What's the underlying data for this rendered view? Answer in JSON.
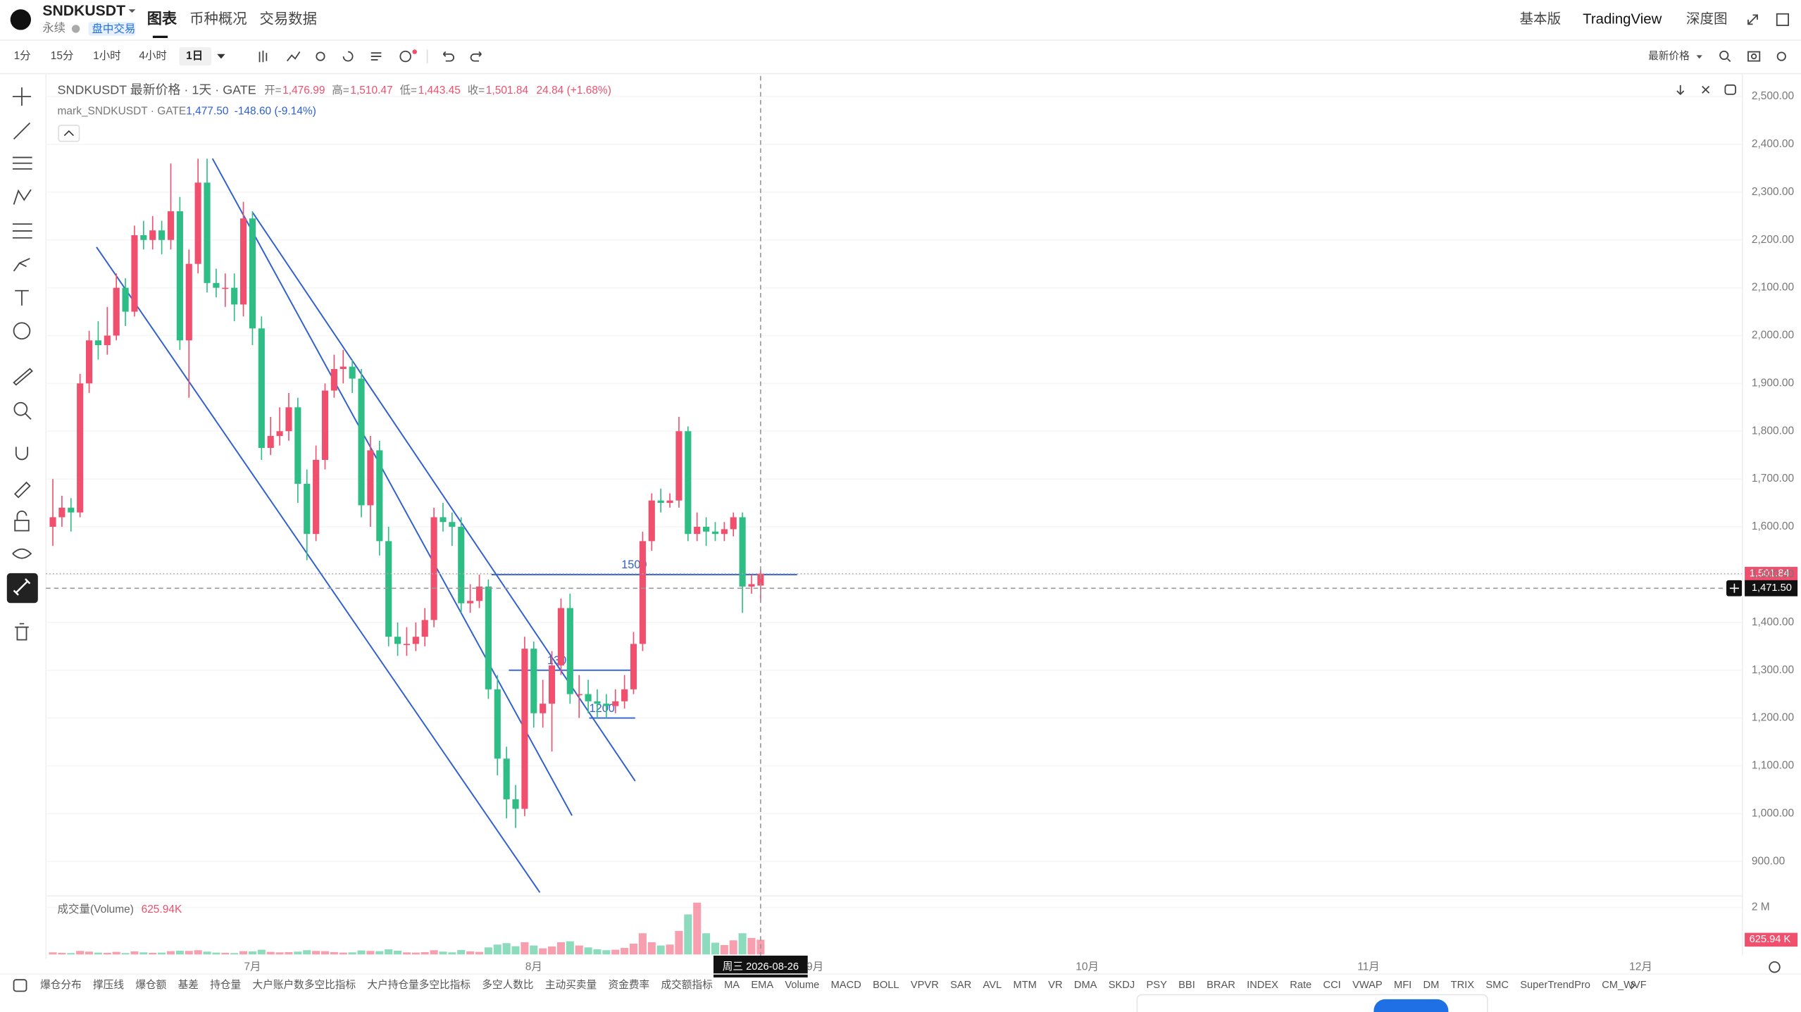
{
  "header": {
    "symbol": "SNDKUSDT",
    "contract": "永续",
    "badge": "盘中交易",
    "tabs": [
      "图表",
      "币种概况",
      "交易数据"
    ],
    "right_links": [
      "基本版",
      "TradingView",
      "深度图"
    ]
  },
  "toolbar": {
    "intervals": [
      "1分",
      "15分",
      "1小时",
      "4小时",
      "1日"
    ],
    "price_source": "最新价格"
  },
  "chart_data": [
    {
      "type": "candlestick",
      "legend": {
        "title": "SNDKUSDT 最新价格 · 1天 · GATE",
        "ohlc": [
          {
            "label": "开=",
            "value": "1,476.99"
          },
          {
            "label": "高=",
            "value": "1,510.47"
          },
          {
            "label": "低=",
            "value": "1,443.45"
          },
          {
            "label": "收=",
            "value": "1,501.84"
          }
        ],
        "change": "24.84 (+1.68%)",
        "mark_title": "mark_SNDKUSDT · GATE",
        "mark_price": "1,477.50",
        "mark_change": "-148.60 (-9.14%)"
      },
      "categories": [
        null,
        null,
        null,
        null,
        null,
        null,
        null,
        null,
        null,
        null,
        null,
        null,
        null,
        null,
        null,
        null,
        null,
        null,
        null,
        null,
        null,
        null,
        "7月",
        null,
        null,
        null,
        null,
        null,
        null,
        null,
        null,
        null,
        null,
        null,
        null,
        null,
        null,
        null,
        null,
        null,
        null,
        null,
        null,
        null,
        null,
        null,
        null,
        null,
        null,
        null,
        null,
        null,
        null,
        "8月",
        null,
        null,
        null,
        null,
        null,
        null,
        null,
        null,
        null,
        null,
        null,
        null,
        null,
        null,
        null,
        null,
        null,
        null,
        null,
        null,
        null,
        null,
        null,
        null,
        null
      ],
      "future_x_labels": [
        "9月",
        "10月",
        "11月",
        "12月"
      ],
      "candles": [
        [
          1600,
          1700,
          1560,
          1620
        ],
        [
          1620,
          1665,
          1600,
          1640
        ],
        [
          1640,
          1660,
          1590,
          1630
        ],
        [
          1630,
          1920,
          1620,
          1900
        ],
        [
          1900,
          2010,
          1880,
          1990
        ],
        [
          1990,
          2030,
          1950,
          1980
        ],
        [
          1980,
          2060,
          1960,
          2000
        ],
        [
          2000,
          2130,
          1990,
          2100
        ],
        [
          2100,
          2120,
          2020,
          2050
        ],
        [
          2050,
          2230,
          2040,
          2210
        ],
        [
          2210,
          2240,
          2180,
          2200
        ],
        [
          2200,
          2250,
          2180,
          2220
        ],
        [
          2220,
          2240,
          2170,
          2200
        ],
        [
          2200,
          2360,
          2180,
          2260
        ],
        [
          2260,
          2290,
          1970,
          1990
        ],
        [
          1990,
          2180,
          1870,
          2150
        ],
        [
          2150,
          2370,
          2130,
          2320
        ],
        [
          2320,
          2370,
          2090,
          2110
        ],
        [
          2110,
          2140,
          2080,
          2100
        ],
        [
          2100,
          2130,
          2060,
          2100
        ],
        [
          2100,
          2130,
          2030,
          2065
        ],
        [
          2065,
          2280,
          2040,
          2245
        ],
        [
          2245,
          2260,
          1980,
          2015
        ],
        [
          2015,
          2040,
          1740,
          1765
        ],
        [
          1765,
          1830,
          1750,
          1790
        ],
        [
          1790,
          1850,
          1770,
          1800
        ],
        [
          1800,
          1880,
          1780,
          1850
        ],
        [
          1850,
          1870,
          1650,
          1690
        ],
        [
          1690,
          1720,
          1530,
          1585
        ],
        [
          1585,
          1770,
          1570,
          1740
        ],
        [
          1740,
          1900,
          1720,
          1885
        ],
        [
          1885,
          1960,
          1870,
          1930
        ],
        [
          1930,
          1970,
          1900,
          1935
        ],
        [
          1935,
          1950,
          1880,
          1910
        ],
        [
          1910,
          1930,
          1620,
          1645
        ],
        [
          1645,
          1790,
          1600,
          1760
        ],
        [
          1760,
          1780,
          1540,
          1570
        ],
        [
          1570,
          1600,
          1350,
          1370
        ],
        [
          1370,
          1400,
          1330,
          1355
        ],
        [
          1355,
          1390,
          1330,
          1355
        ],
        [
          1355,
          1400,
          1340,
          1370
        ],
        [
          1370,
          1430,
          1350,
          1405
        ],
        [
          1405,
          1640,
          1390,
          1620
        ],
        [
          1620,
          1650,
          1590,
          1610
        ],
        [
          1610,
          1630,
          1560,
          1600
        ],
        [
          1600,
          1620,
          1420,
          1440
        ],
        [
          1440,
          1480,
          1420,
          1445
        ],
        [
          1445,
          1500,
          1430,
          1475
        ],
        [
          1475,
          1490,
          1240,
          1260
        ],
        [
          1260,
          1290,
          1080,
          1115
        ],
        [
          1115,
          1140,
          990,
          1030
        ],
        [
          1030,
          1060,
          970,
          1010
        ],
        [
          1010,
          1370,
          995,
          1345
        ],
        [
          1345,
          1360,
          1180,
          1210
        ],
        [
          1210,
          1280,
          1180,
          1230
        ],
        [
          1230,
          1340,
          1130,
          1310
        ],
        [
          1310,
          1450,
          1290,
          1430
        ],
        [
          1430,
          1460,
          1230,
          1250
        ],
        [
          1250,
          1290,
          1200,
          1250
        ],
        [
          1250,
          1280,
          1210,
          1235
        ],
        [
          1235,
          1260,
          1200,
          1230
        ],
        [
          1230,
          1250,
          1200,
          1225
        ],
        [
          1225,
          1260,
          1210,
          1235
        ],
        [
          1235,
          1290,
          1220,
          1260
        ],
        [
          1260,
          1380,
          1250,
          1355
        ],
        [
          1355,
          1590,
          1340,
          1570
        ],
        [
          1570,
          1670,
          1550,
          1655
        ],
        [
          1655,
          1680,
          1630,
          1650
        ],
        [
          1650,
          1670,
          1640,
          1655
        ],
        [
          1655,
          1830,
          1640,
          1800
        ],
        [
          1800,
          1810,
          1570,
          1585
        ],
        [
          1585,
          1630,
          1570,
          1600
        ],
        [
          1600,
          1620,
          1560,
          1590
        ],
        [
          1590,
          1610,
          1570,
          1585
        ],
        [
          1585,
          1610,
          1570,
          1595
        ],
        [
          1595,
          1630,
          1580,
          1620
        ],
        [
          1620,
          1630,
          1420,
          1475
        ],
        [
          1475,
          1500,
          1460,
          1480
        ],
        [
          1476.99,
          1510.47,
          1443.45,
          1501.84
        ]
      ],
      "up_color": "#f0506e",
      "down_color": "#2ebd85",
      "ylim": [
        832.7,
        2543.2
      ],
      "yticks": [
        {
          "value": 2500,
          "label": "2,500.00"
        },
        {
          "value": 2400,
          "label": "2,400.00"
        },
        {
          "value": 2300,
          "label": "2,300.00"
        },
        {
          "value": 2200,
          "label": "2,200.00"
        },
        {
          "value": 2100,
          "label": "2,100.00"
        },
        {
          "value": 2000,
          "label": "2,000.00"
        },
        {
          "value": 1900,
          "label": "1,900.00"
        },
        {
          "value": 1800,
          "label": "1,800.00"
        },
        {
          "value": 1700,
          "label": "1,700.00"
        },
        {
          "value": 1600,
          "label": "1,600.00"
        },
        {
          "value": 1500,
          "label": "1,500.00"
        },
        {
          "value": 1400,
          "label": "1,400.00"
        },
        {
          "value": 1300,
          "label": "1,300.00"
        },
        {
          "value": 1200,
          "label": "1,200.00"
        },
        {
          "value": 1100,
          "label": "1,100.00"
        },
        {
          "value": 1000,
          "label": "1,000.00"
        },
        {
          "value": 900,
          "label": "900.00"
        }
      ],
      "grid": true,
      "last_price": {
        "value": 1501.84,
        "label": "1,501.84"
      },
      "crosshair": {
        "value": 1471.5,
        "label": "1,471.50",
        "date": "周三 2026-08-26"
      },
      "drawings": [
        {
          "label": "1500",
          "value": 1500,
          "color": "#2f5fd0"
        },
        {
          "label": "1300",
          "value": 1300,
          "color": "#2f5fd0"
        },
        {
          "label": "1200",
          "value": 1200,
          "color": "#2f5fd0"
        }
      ]
    },
    {
      "type": "bar",
      "title": "成交量(Volume)",
      "legend_value": "625.94K",
      "last_tag": "625.94 K",
      "values": [
        90000,
        70000,
        60000,
        150000,
        120000,
        80000,
        70000,
        110000,
        60000,
        130000,
        90000,
        70000,
        80000,
        140000,
        160000,
        150000,
        180000,
        120000,
        80000,
        70000,
        60000,
        140000,
        130000,
        200000,
        110000,
        90000,
        100000,
        120000,
        180000,
        150000,
        140000,
        100000,
        80000,
        90000,
        170000,
        150000,
        140000,
        220000,
        160000,
        90000,
        80000,
        100000,
        180000,
        120000,
        90000,
        190000,
        130000,
        110000,
        300000,
        420000,
        480000,
        350000,
        520000,
        380000,
        260000,
        340000,
        520000,
        560000,
        380000,
        300000,
        220000,
        180000,
        200000,
        280000,
        460000,
        900000,
        520000,
        380000,
        420000,
        1000000,
        1700000,
        2200000,
        900000,
        500000,
        400000,
        600000,
        900000,
        700000,
        625940
      ],
      "ylim": [
        0,
        2340000
      ],
      "yticks": [
        {
          "value": 2000000,
          "label": "2 M"
        }
      ]
    }
  ],
  "indicators": [
    "爆仓分布",
    "撑压线",
    "爆仓额",
    "基差",
    "持仓量",
    "大户账户数多空比指标",
    "大户持仓量多空比指标",
    "多空人数比",
    "主动买卖量",
    "资金费率",
    "成交额指标",
    "MA",
    "EMA",
    "Volume",
    "MACD",
    "BOLL",
    "VPVR",
    "SAR",
    "AVL",
    "MTM",
    "VR",
    "DMA",
    "SKDJ",
    "PSY",
    "BBI",
    "BRAR",
    "INDEX",
    "Rate",
    "CCI",
    "VWAP",
    "MFI",
    "DM",
    "TRIX",
    "SMC",
    "SuperTrendPro",
    "CM_WVF"
  ]
}
